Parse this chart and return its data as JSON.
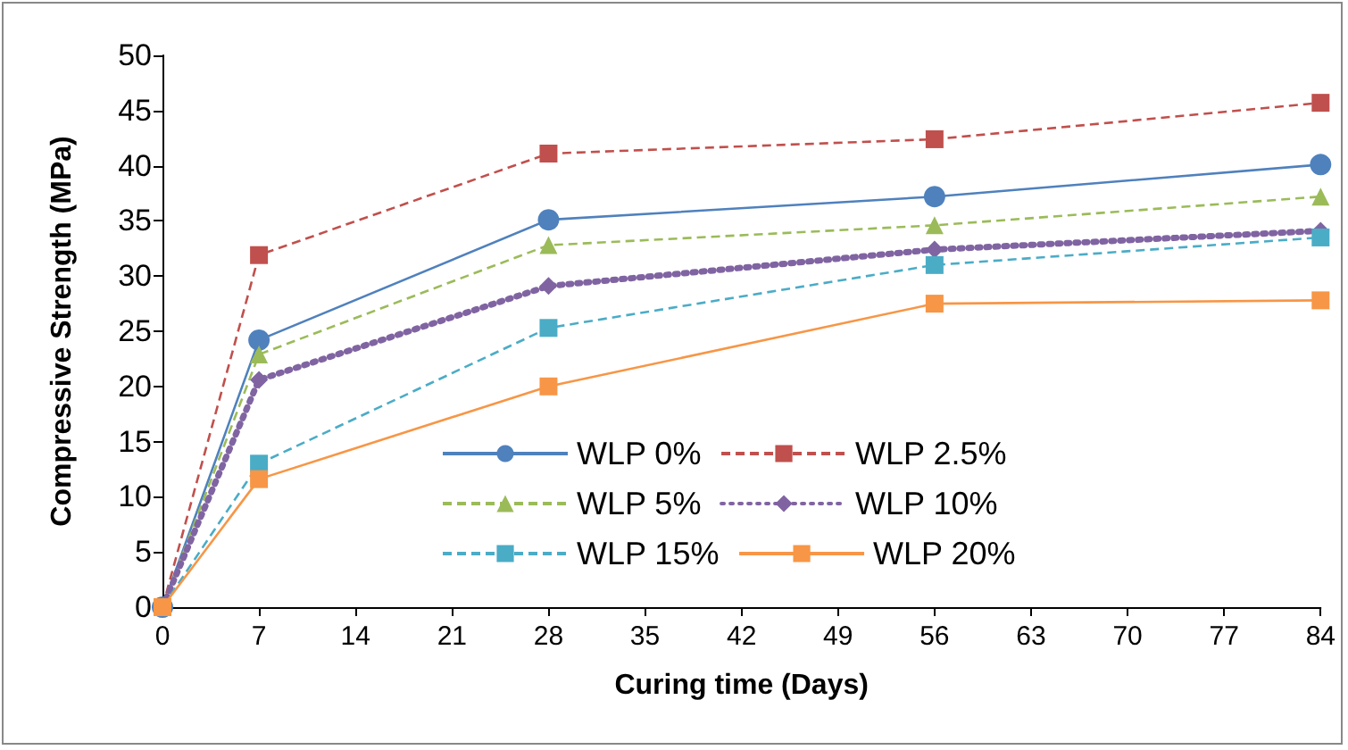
{
  "chart_data": {
    "type": "line",
    "xlabel": "Curing time (Days)",
    "ylabel": "Compressive Strength (MPa)",
    "x": [
      0,
      7,
      28,
      56,
      84
    ],
    "xlim": [
      0,
      84
    ],
    "xticks": [
      0,
      7,
      14,
      21,
      28,
      35,
      42,
      49,
      56,
      63,
      70,
      77,
      84
    ],
    "ylim": [
      0,
      50
    ],
    "yticks": [
      0,
      5,
      10,
      15,
      20,
      25,
      30,
      35,
      40,
      45,
      50
    ],
    "grid": false,
    "legend": "bottom right",
    "series": [
      {
        "name": "WLP 0%",
        "color": "#4f81bd",
        "marker": "circle",
        "line_style": "solid",
        "values": [
          0,
          24.2,
          35.1,
          37.2,
          40.1
        ]
      },
      {
        "name": "WLP 2.5%",
        "color": "#c0504d",
        "marker": "square",
        "line_style": "dashed",
        "values": [
          0,
          31.9,
          41.1,
          42.4,
          45.7
        ]
      },
      {
        "name": "WLP 5%",
        "color": "#9bbb59",
        "marker": "triangle",
        "line_style": "dashed",
        "values": [
          0,
          22.9,
          32.8,
          34.6,
          37.2
        ]
      },
      {
        "name": "WLP 10%",
        "color": "#8064a2",
        "marker": "diamond",
        "line_style": "dotted",
        "values": [
          0,
          20.6,
          29.1,
          32.4,
          34.1
        ]
      },
      {
        "name": "WLP 15%",
        "color": "#4bacc6",
        "marker": "square",
        "line_style": "dashed",
        "values": [
          0,
          13.0,
          25.3,
          31.0,
          33.5
        ]
      },
      {
        "name": "WLP 20%",
        "color": "#f79646",
        "marker": "square",
        "line_style": "solid",
        "values": [
          0,
          11.6,
          20.0,
          27.5,
          27.8
        ]
      }
    ]
  }
}
